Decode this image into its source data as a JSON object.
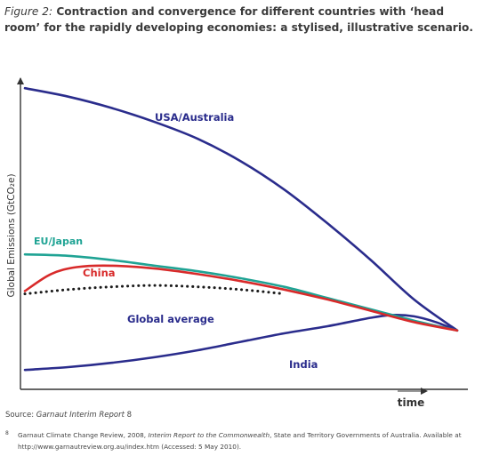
{
  "figure": {
    "label": "Figure 2:",
    "title": "Contraction and convergence for different countries with ‘head room’ for the rapidly developing economies: a stylised, illustrative scenario."
  },
  "source": {
    "prefix": "Source: ",
    "name": "Garnaut Interim Report",
    "marker": " 8"
  },
  "footnote": {
    "marker": "8",
    "part1": "Garnaut Climate Change Review, 2008, ",
    "italic": "Interim Report to the Commonwealth",
    "part2": ", State and Territory Governments of Australia. Available at http://www.garnautreview.org.au/index.htm  (Accessed: 5 May 2010)."
  },
  "chart_data": {
    "type": "line",
    "xlabel": "time",
    "ylabel": "Global Emissions (GtCO₂e)",
    "x_ticks": "none",
    "y_ticks": "none",
    "grid": false,
    "legend": "none (series labelled directly on the lines)",
    "x_domain": [
      0,
      100
    ],
    "y_domain": [
      0,
      100
    ],
    "colors": {
      "usa_australia": "#2a2c8c",
      "eu_japan": "#1fa394",
      "china": "#d82a2a",
      "global_average": "#1a1a1a",
      "india": "#2a2c8c"
    },
    "series": [
      {
        "name": "USA/Australia",
        "color": "#2a2c8c",
        "x": [
          0,
          10,
          20,
          30,
          40,
          50,
          60,
          70,
          80,
          90,
          100
        ],
        "y": [
          99,
          96,
          92,
          87,
          81,
          73,
          63,
          51,
          38,
          24,
          13
        ]
      },
      {
        "name": "EU/Japan",
        "color": "#1fa394",
        "x": [
          0,
          10,
          20,
          30,
          40,
          50,
          60,
          70,
          80,
          90,
          100
        ],
        "y": [
          40,
          39.5,
          38,
          36,
          34,
          31.5,
          28.5,
          24.5,
          20.5,
          16.5,
          13
        ]
      },
      {
        "name": "China",
        "color": "#d82a2a",
        "x": [
          0,
          6,
          12,
          20,
          30,
          40,
          50,
          60,
          70,
          80,
          90,
          100
        ],
        "y": [
          27,
          33,
          35.5,
          36,
          35,
          33,
          30.5,
          27.5,
          24,
          20,
          16,
          13
        ]
      },
      {
        "name": "Global average",
        "color": "#1a1a1a",
        "dashed": true,
        "x": [
          0,
          10,
          20,
          30,
          40,
          50,
          60
        ],
        "y": [
          26,
          27.5,
          28.5,
          29,
          28.5,
          27.5,
          26
        ]
      },
      {
        "name": "India",
        "color": "#2a2c8c",
        "x": [
          0,
          10,
          20,
          30,
          40,
          50,
          60,
          70,
          80,
          85,
          90,
          95,
          100
        ],
        "y": [
          -1,
          0,
          1.5,
          3.5,
          6,
          9,
          12,
          14.5,
          17.5,
          18.5,
          18,
          16,
          13
        ]
      }
    ],
    "annotations": [
      {
        "text": "USA/Australia",
        "series": "USA/Australia",
        "color": "#2a2c8c"
      },
      {
        "text": "EU/Japan",
        "series": "EU/Japan",
        "color": "#1fa394"
      },
      {
        "text": "China",
        "series": "China",
        "color": "#d82a2a"
      },
      {
        "text": "Global average",
        "series": "Global average",
        "color": "#2a2c8c"
      },
      {
        "text": "India",
        "series": "India",
        "color": "#2a2c8c"
      }
    ]
  }
}
